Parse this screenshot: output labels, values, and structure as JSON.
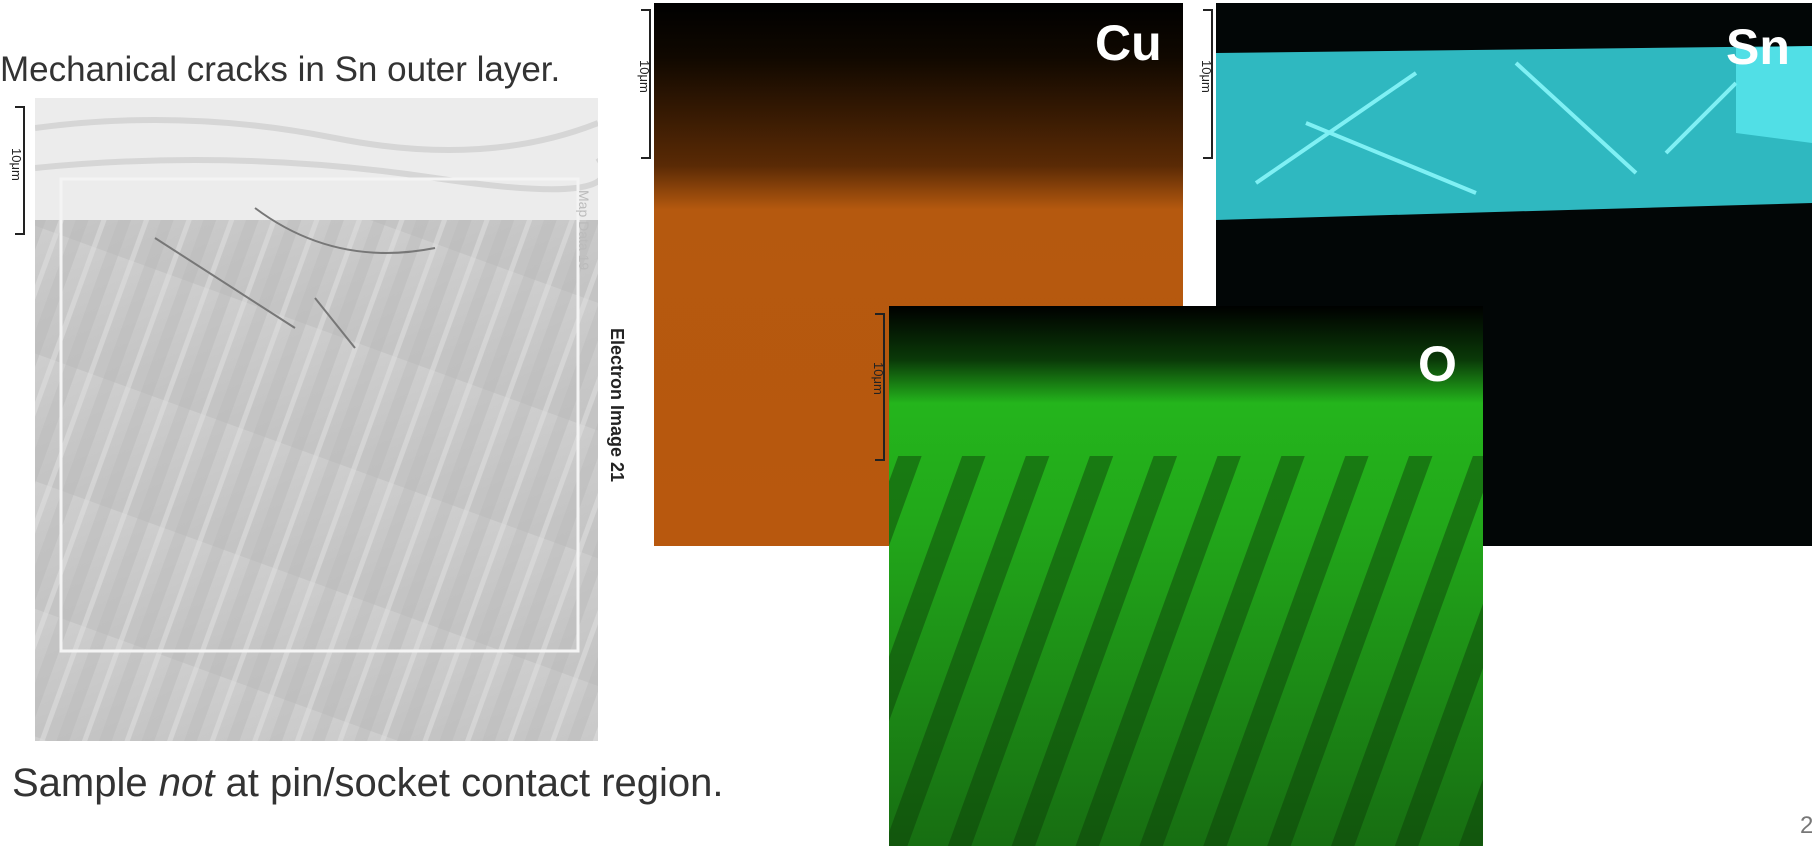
{
  "slide": {
    "caption_top": "Mechanical cracks in Sn outer layer.",
    "electron_image": {
      "scale_label": "10μm",
      "map_label": "Map Data 19",
      "image_label": "Electron Image 21"
    },
    "maps": [
      {
        "element": "Cu",
        "scale_label": "10μm"
      },
      {
        "element": "Sn",
        "scale_label": "10μm"
      },
      {
        "element": "O",
        "scale_label": "10μm"
      }
    ],
    "caption_bottom": {
      "before": "Sample ",
      "emphasis": "not",
      "after": " at pin/socket contact region."
    },
    "page_number": "2"
  }
}
